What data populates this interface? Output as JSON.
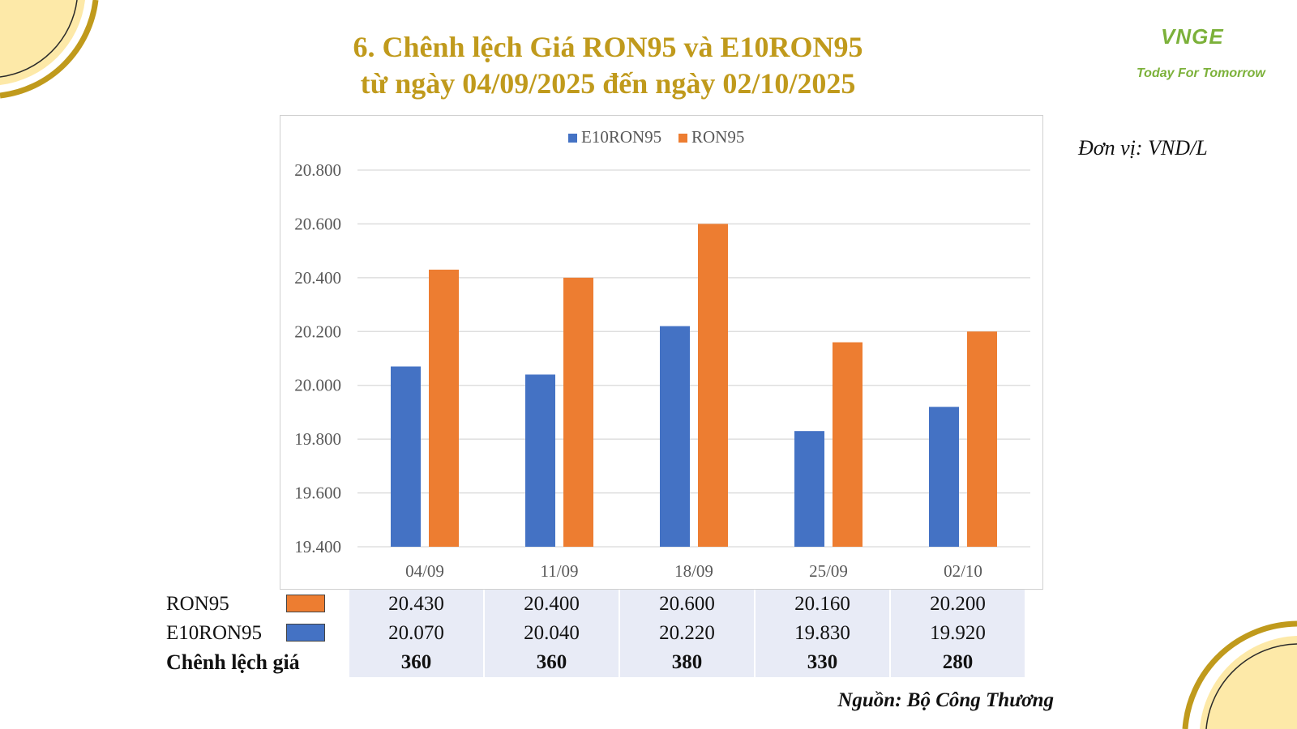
{
  "title_line1": "6. Chênh lệch Giá RON95 và E10RON95",
  "title_line2": "từ ngày 04/09/2025 đến ngày 02/10/2025",
  "logo": {
    "mark": "VNGE",
    "tagline": "Today For Tomorrow"
  },
  "unit_note": "Đơn vị: VND/L",
  "source_note": "Nguồn: Bộ Công Thương",
  "colors": {
    "ron95": "#ed7d31",
    "e10ron95": "#4472c4",
    "title": "#c09a1c",
    "decor": "#c09a1c",
    "decor_fill": "#fde9a8",
    "logo": "#7cb13a",
    "table_bg": "#e8ebf6"
  },
  "chart_data": {
    "type": "bar",
    "categories": [
      "04/09",
      "11/09",
      "18/09",
      "25/09",
      "02/10"
    ],
    "series": [
      {
        "name": "E10RON95",
        "values": [
          20070,
          20040,
          20220,
          19830,
          19920
        ],
        "color": "#4472c4"
      },
      {
        "name": "RON95",
        "values": [
          20430,
          20400,
          20600,
          20160,
          20200
        ],
        "color": "#ed7d31"
      }
    ],
    "ylim": [
      19400,
      20800
    ],
    "y_ticks": [
      19400,
      19600,
      19800,
      20000,
      20200,
      20400,
      20600,
      20800
    ],
    "y_tick_labels": [
      "19.400",
      "19.600",
      "19.800",
      "20.000",
      "20.200",
      "20.400",
      "20.600",
      "20.800"
    ],
    "legend_position": "top-center",
    "grid": true
  },
  "table": {
    "rows": [
      {
        "label": "RON95",
        "swatch": "#ed7d31",
        "cells": [
          "20.430",
          "20.400",
          "20.600",
          "20.160",
          "20.200"
        ]
      },
      {
        "label": "E10RON95",
        "swatch": "#4472c4",
        "cells": [
          "20.070",
          "20.040",
          "20.220",
          "19.830",
          "19.920"
        ]
      },
      {
        "label": "Chênh lệch giá",
        "swatch": null,
        "cells": [
          "360",
          "360",
          "380",
          "330",
          "280"
        ]
      }
    ]
  }
}
